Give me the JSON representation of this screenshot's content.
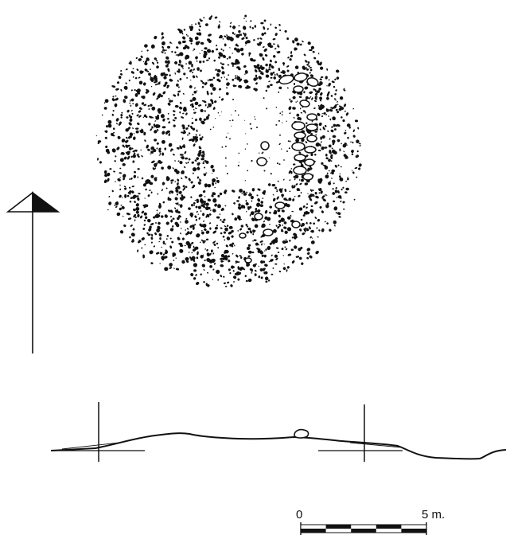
{
  "plan": {
    "stone_fill": "#111111",
    "center_fill": "#ffffff"
  },
  "north_arrow": {
    "icon": "north-arrow-icon",
    "dark_half": "#111111",
    "light_half": "#ffffff"
  },
  "scale_bar": {
    "start_label": "0",
    "end_label": "5 m.",
    "segments": 5,
    "color": "#111111"
  }
}
